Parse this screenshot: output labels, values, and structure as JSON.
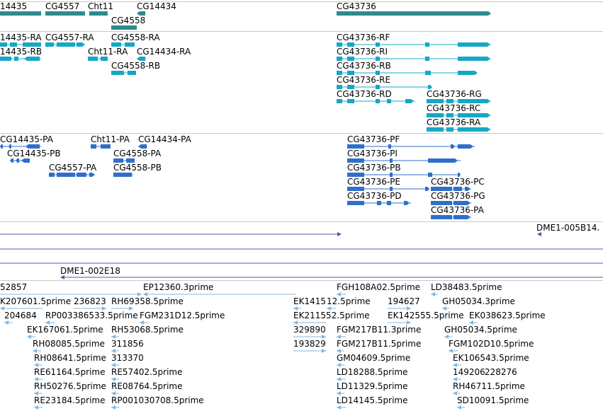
{
  "colors": {
    "gene": "#2e8b8f",
    "transcript": "#16a7c6",
    "cds": "#2f6fcb",
    "sequence": "#6a4ca8",
    "est": "#86b7dc",
    "divider": "#c8c8c8"
  },
  "tracks": {
    "genes": [
      "14435",
      "CG4557",
      "Cht11",
      "CG14434",
      "CG4558",
      "CG43736"
    ],
    "transcripts": [
      "14435-RA",
      "CG4557-RA",
      "CG4558-RA",
      "14435-RB",
      "Cht11-RA",
      "CG14434-RA",
      "CG4558-RB",
      "CG43736-RF",
      "CG43736-RI",
      "CG43736-RB",
      "CG43736-RE",
      "CG43736-RD",
      "CG43736-RG",
      "CG43736-RC",
      "CG43736-RA"
    ],
    "cds": [
      "CG14435-PA",
      "Cht11-PA",
      "CG14434-PA",
      "CG14435-PB",
      "CG4558-PA",
      "CG4557-PA",
      "CG4558-PB",
      "CG43736-PF",
      "CG43736-PI",
      "CG43736-PB",
      "CG43736-PE",
      "CG43736-PC",
      "CG43736-PD",
      "CG43736-PG",
      "CG43736-PA"
    ],
    "sequences": [
      "DME1-005B14.",
      "DME1-002E18"
    ],
    "ests": [
      "52857",
      "EP12360.3prime",
      "FGH108A02.5prime",
      "LD38483.5prime",
      "K207601.5prime",
      "236823",
      "RH69358.5prime",
      "EK1415",
      "12.5prime",
      "194627",
      "GH05034.3prime",
      "204684",
      "RP003386533.5prime",
      "FGM231D12.5prime",
      "EK211552.5prime",
      "EK142555.5prime",
      "EK038623.5prime",
      "EK167061.5prime",
      "RH53068.5prime",
      "329890",
      "FGM217B11.3prime",
      "GH05034.5prime",
      "RH08085.5prime",
      "311856",
      "193829",
      "FGM217B11.5prime",
      "FGM102D10.5prime",
      "RH08641.5prime",
      "313370",
      "GM04609.5prime",
      "EK106543.5prime",
      "RE61164.5prime",
      "RE57402.5prime",
      "LD18288.5prime",
      "149206",
      "228276",
      "RH50276.5prime",
      "RE08764.5prime",
      "LD11329.5prime",
      "RH46711.5prime",
      "RE23184.5prime",
      "RP001030708.5prime",
      "LD14145.5prime",
      "SD10091.5prime"
    ]
  }
}
